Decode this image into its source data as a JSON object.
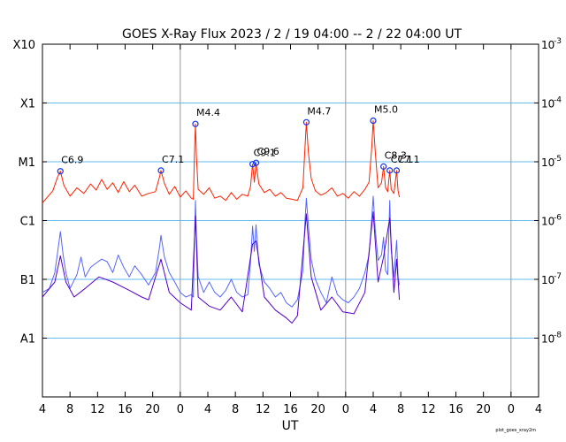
{
  "chart_data": {
    "type": "line",
    "title": "GOES X-Ray Flux   2023  /  2 / 19   04:00 --  2 / 22   04:00    UT",
    "xlabel": "UT",
    "x_tick_labels": [
      "4",
      "8",
      "12",
      "16",
      "20",
      "0",
      "4",
      "8",
      "12",
      "16",
      "20",
      "0",
      "4",
      "8",
      "12",
      "16",
      "20",
      "0",
      "4"
    ],
    "x_start_hour": 4,
    "x_range_hours": [
      0,
      72
    ],
    "day_boundaries_hours": [
      20,
      44,
      68
    ],
    "y_scale": "log",
    "y_range": [
      1e-09,
      0.001
    ],
    "y_left_labels": [
      {
        "label": "X10",
        "value": 0.001
      },
      {
        "label": "X1",
        "value": 0.0001
      },
      {
        "label": "M1",
        "value": 1e-05
      },
      {
        "label": "C1",
        "value": 1e-06
      },
      {
        "label": "B1",
        "value": 1e-07
      },
      {
        "label": "A1",
        "value": 1e-08
      }
    ],
    "y_right_labels": [
      {
        "label": "10",
        "exp": "-3",
        "value": 0.001
      },
      {
        "label": "10",
        "exp": "-4",
        "value": 0.0001
      },
      {
        "label": "10",
        "exp": "-5",
        "value": 1e-05
      },
      {
        "label": "10",
        "exp": "-6",
        "value": 1e-06
      },
      {
        "label": "10",
        "exp": "-7",
        "value": 1e-07
      },
      {
        "label": "10",
        "exp": "-8",
        "value": 1e-08
      }
    ],
    "grid_lines": [
      0.0001,
      1e-05,
      1e-06,
      1e-07,
      1e-08
    ],
    "flares": [
      {
        "label": "C6.9",
        "hour": 2.6,
        "flux": 6.9e-06
      },
      {
        "label": "C7.1",
        "hour": 17.2,
        "flux": 7.1e-06
      },
      {
        "label": "M4.4",
        "hour": 22.2,
        "flux": 4.4e-05
      },
      {
        "label": "C9.1",
        "hour": 30.5,
        "flux": 9.1e-06
      },
      {
        "label": "C9.6",
        "hour": 31.0,
        "flux": 9.6e-06
      },
      {
        "label": "M4.7",
        "hour": 38.3,
        "flux": 4.7e-05
      },
      {
        "label": "M5.0",
        "hour": 48.0,
        "flux": 5e-05
      },
      {
        "label": "C8.3",
        "hour": 49.5,
        "flux": 8.3e-06
      },
      {
        "label": "C7.1",
        "hour": 50.4,
        "flux": 7.1e-06
      },
      {
        "label": "C7.1",
        "hour": 51.4,
        "flux": 7.1e-06
      }
    ],
    "series": [
      {
        "name": "",
        "color": "#ff2200",
        "points": [
          [
            0,
            2e-06
          ],
          [
            1.5,
            3.2e-06
          ],
          [
            2.2,
            5.5e-06
          ],
          [
            2.6,
            6.9e-06
          ],
          [
            3.1,
            4e-06
          ],
          [
            4,
            2.6e-06
          ],
          [
            5,
            3.6e-06
          ],
          [
            6,
            2.9e-06
          ],
          [
            7,
            4.2e-06
          ],
          [
            7.8,
            3.3e-06
          ],
          [
            8.6,
            5e-06
          ],
          [
            9.4,
            3.4e-06
          ],
          [
            10.2,
            4.4e-06
          ],
          [
            11,
            3e-06
          ],
          [
            11.8,
            4.6e-06
          ],
          [
            12.6,
            3.1e-06
          ],
          [
            13.4,
            4e-06
          ],
          [
            14.4,
            2.6e-06
          ],
          [
            15.4,
            2.9e-06
          ],
          [
            16.4,
            3.1e-06
          ],
          [
            17.0,
            5.6e-06
          ],
          [
            17.2,
            7.1e-06
          ],
          [
            17.7,
            4.3e-06
          ],
          [
            18.4,
            2.8e-06
          ],
          [
            19.2,
            3.8e-06
          ],
          [
            20,
            2.5e-06
          ],
          [
            20.8,
            3.2e-06
          ],
          [
            21.6,
            2.4e-06
          ],
          [
            21.9,
            2.3e-06
          ],
          [
            22.1,
            2e-05
          ],
          [
            22.2,
            4.4e-05
          ],
          [
            22.35,
            1.2e-05
          ],
          [
            22.6,
            3.4e-06
          ],
          [
            23.4,
            2.8e-06
          ],
          [
            24.2,
            3.6e-06
          ],
          [
            25,
            2.4e-06
          ],
          [
            25.8,
            2.6e-06
          ],
          [
            26.6,
            2.2e-06
          ],
          [
            27.4,
            3e-06
          ],
          [
            28.2,
            2.3e-06
          ],
          [
            29.0,
            2.8e-06
          ],
          [
            29.8,
            2.6e-06
          ],
          [
            30.2,
            3.8e-06
          ],
          [
            30.5,
            9.1e-06
          ],
          [
            30.75,
            4.5e-06
          ],
          [
            31.0,
            9.6e-06
          ],
          [
            31.4,
            4.2e-06
          ],
          [
            32.2,
            3e-06
          ],
          [
            33.0,
            3.4e-06
          ],
          [
            33.8,
            2.6e-06
          ],
          [
            34.6,
            3e-06
          ],
          [
            35.4,
            2.4e-06
          ],
          [
            36.2,
            2.3e-06
          ],
          [
            37.0,
            2.2e-06
          ],
          [
            37.8,
            3.6e-06
          ],
          [
            38.1,
            1.8e-05
          ],
          [
            38.3,
            4.7e-05
          ],
          [
            38.6,
            1.4e-05
          ],
          [
            39.0,
            5.2e-06
          ],
          [
            39.6,
            3.2e-06
          ],
          [
            40.4,
            2.7e-06
          ],
          [
            41.2,
            3e-06
          ],
          [
            42.0,
            3.6e-06
          ],
          [
            42.8,
            2.6e-06
          ],
          [
            43.6,
            2.9e-06
          ],
          [
            44.4,
            2.4e-06
          ],
          [
            45.2,
            3.1e-06
          ],
          [
            46.0,
            2.6e-06
          ],
          [
            46.8,
            3.4e-06
          ],
          [
            47.4,
            4.5e-06
          ],
          [
            47.8,
            1.8e-05
          ],
          [
            48.0,
            5e-05
          ],
          [
            48.3,
            1.5e-05
          ],
          [
            48.7,
            3.6e-06
          ],
          [
            49.2,
            4.4e-06
          ],
          [
            49.5,
            8.3e-06
          ],
          [
            49.8,
            3.6e-06
          ],
          [
            50.1,
            3.1e-06
          ],
          [
            50.4,
            7.1e-06
          ],
          [
            50.6,
            3.4e-06
          ],
          [
            51.0,
            2.9e-06
          ],
          [
            51.4,
            7.1e-06
          ],
          [
            51.6,
            3.2e-06
          ],
          [
            51.8,
            2.5e-06
          ]
        ]
      },
      {
        "name": "",
        "color": "#5566ff",
        "points": [
          [
            0,
            6e-08
          ],
          [
            1.0,
            7e-08
          ],
          [
            1.8,
            1.3e-07
          ],
          [
            2.3,
            3.5e-07
          ],
          [
            2.6,
            6.5e-07
          ],
          [
            3.0,
            2.6e-07
          ],
          [
            3.4,
            1.3e-07
          ],
          [
            4,
            7e-08
          ],
          [
            5,
            1.2e-07
          ],
          [
            5.6,
            2.4e-07
          ],
          [
            6.2,
            1.1e-07
          ],
          [
            7.0,
            1.6e-07
          ],
          [
            7.8,
            1.9e-07
          ],
          [
            8.6,
            2.2e-07
          ],
          [
            9.4,
            2e-07
          ],
          [
            10.2,
            1.3e-07
          ],
          [
            11.0,
            2.6e-07
          ],
          [
            11.8,
            1.6e-07
          ],
          [
            12.6,
            1.1e-07
          ],
          [
            13.4,
            1.7e-07
          ],
          [
            14.4,
            1.2e-07
          ],
          [
            15.4,
            8e-08
          ],
          [
            16.4,
            1.3e-07
          ],
          [
            17.0,
            3.6e-07
          ],
          [
            17.2,
            5.6e-07
          ],
          [
            17.7,
            2.4e-07
          ],
          [
            18.4,
            1.3e-07
          ],
          [
            19.2,
            9e-08
          ],
          [
            20,
            6e-08
          ],
          [
            20.8,
            5e-08
          ],
          [
            21.6,
            5.5e-08
          ],
          [
            21.9,
            5e-08
          ],
          [
            22.1,
            7e-07
          ],
          [
            22.2,
            2.2e-06
          ],
          [
            22.35,
            5.5e-07
          ],
          [
            22.6,
            1.1e-07
          ],
          [
            23.4,
            6e-08
          ],
          [
            24.2,
            9e-08
          ],
          [
            25,
            6e-08
          ],
          [
            25.8,
            5e-08
          ],
          [
            26.6,
            6.5e-08
          ],
          [
            27.4,
            1e-07
          ],
          [
            28.2,
            6e-08
          ],
          [
            29.0,
            5e-08
          ],
          [
            29.8,
            5.5e-08
          ],
          [
            30.2,
            2e-07
          ],
          [
            30.5,
            8e-07
          ],
          [
            30.75,
            3e-07
          ],
          [
            31.0,
            8.5e-07
          ],
          [
            31.4,
            1.8e-07
          ],
          [
            32.2,
            9e-08
          ],
          [
            33.0,
            7e-08
          ],
          [
            33.8,
            5e-08
          ],
          [
            34.6,
            6e-08
          ],
          [
            35.4,
            4e-08
          ],
          [
            36.2,
            3.4e-08
          ],
          [
            37.0,
            4.5e-08
          ],
          [
            37.8,
            1.4e-07
          ],
          [
            38.1,
            1e-06
          ],
          [
            38.3,
            2.4e-06
          ],
          [
            38.6,
            8e-07
          ],
          [
            39.0,
            2.2e-07
          ],
          [
            39.6,
            1e-07
          ],
          [
            40.4,
            6e-08
          ],
          [
            41.2,
            4e-08
          ],
          [
            42.0,
            1.1e-07
          ],
          [
            42.8,
            5.5e-08
          ],
          [
            43.6,
            4.5e-08
          ],
          [
            44.4,
            4e-08
          ],
          [
            45.2,
            5e-08
          ],
          [
            46.0,
            7e-08
          ],
          [
            46.8,
            1.3e-07
          ],
          [
            47.4,
            2.6e-07
          ],
          [
            47.8,
            1.1e-06
          ],
          [
            48.0,
            2.6e-06
          ],
          [
            48.3,
            7e-07
          ],
          [
            48.7,
            2.1e-07
          ],
          [
            49.2,
            2.6e-07
          ],
          [
            49.5,
            5.2e-07
          ],
          [
            49.8,
            1.4e-07
          ],
          [
            50.1,
            1.2e-07
          ],
          [
            50.4,
            2.2e-06
          ],
          [
            50.6,
            3.2e-07
          ],
          [
            51.0,
            1.1e-07
          ],
          [
            51.4,
            4.6e-07
          ],
          [
            51.6,
            1.1e-07
          ],
          [
            51.8,
            8e-08
          ]
        ]
      },
      {
        "name": "",
        "color": "#5500cc",
        "points": [
          [
            0,
            5e-08
          ],
          [
            1.8,
            9e-08
          ],
          [
            2.6,
            2.5e-07
          ],
          [
            3.4,
            9e-08
          ],
          [
            4.6,
            5e-08
          ],
          [
            6.2,
            7e-08
          ],
          [
            8.2,
            1.1e-07
          ],
          [
            10.2,
            9e-08
          ],
          [
            12.6,
            6.5e-08
          ],
          [
            14.4,
            5e-08
          ],
          [
            15.4,
            4.5e-08
          ],
          [
            17.2,
            2.2e-07
          ],
          [
            18.4,
            6e-08
          ],
          [
            20,
            4e-08
          ],
          [
            21.6,
            3e-08
          ],
          [
            22.2,
            1.2e-06
          ],
          [
            22.6,
            5e-08
          ],
          [
            24.2,
            3.5e-08
          ],
          [
            25.8,
            3e-08
          ],
          [
            27.4,
            5e-08
          ],
          [
            29.0,
            2.8e-08
          ],
          [
            30.5,
            4e-07
          ],
          [
            31.0,
            4.5e-07
          ],
          [
            32.2,
            5e-08
          ],
          [
            33.8,
            3e-08
          ],
          [
            35.4,
            2.2e-08
          ],
          [
            36.2,
            1.8e-08
          ],
          [
            37.0,
            2.4e-08
          ],
          [
            38.3,
            1.3e-06
          ],
          [
            39.0,
            1.1e-07
          ],
          [
            40.4,
            3e-08
          ],
          [
            42.0,
            5e-08
          ],
          [
            43.6,
            2.8e-08
          ],
          [
            45.2,
            2.6e-08
          ],
          [
            46.8,
            6e-08
          ],
          [
            48.0,
            1.4e-06
          ],
          [
            48.7,
            9e-08
          ],
          [
            49.5,
            2.4e-07
          ],
          [
            50.4,
            1.1e-06
          ],
          [
            51.0,
            6e-08
          ],
          [
            51.4,
            2.2e-07
          ],
          [
            51.8,
            4.5e-08
          ]
        ]
      }
    ]
  },
  "footer": {
    "credit": "plot_goes_xray2m"
  }
}
